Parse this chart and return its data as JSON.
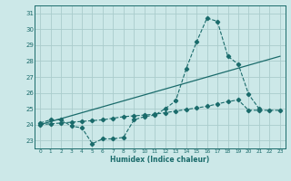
{
  "xlabel": "Humidex (Indice chaleur)",
  "bg_color": "#cce8e8",
  "grid_color": "#aacccc",
  "line_color": "#1a6b6b",
  "xlim": [
    -0.5,
    23.5
  ],
  "ylim": [
    22.5,
    31.5
  ],
  "yticks": [
    23,
    24,
    25,
    26,
    27,
    28,
    29,
    30,
    31
  ],
  "xticks": [
    0,
    1,
    2,
    3,
    4,
    5,
    6,
    7,
    8,
    9,
    10,
    11,
    12,
    13,
    14,
    15,
    16,
    17,
    18,
    19,
    20,
    21,
    22,
    23
  ],
  "series1_x": [
    0,
    1,
    2,
    3,
    4,
    5,
    6,
    7,
    8,
    9,
    10,
    11,
    12,
    13,
    14,
    15,
    16,
    17,
    18,
    19,
    20,
    21
  ],
  "series1_y": [
    24.1,
    24.3,
    24.3,
    23.9,
    23.8,
    22.8,
    23.1,
    23.1,
    23.2,
    24.3,
    24.5,
    24.6,
    25.0,
    25.5,
    27.5,
    29.2,
    30.7,
    30.5,
    28.3,
    27.8,
    25.9,
    25.0
  ],
  "series2_x": [
    0,
    1,
    2,
    3,
    4,
    5,
    6,
    7,
    8,
    9,
    10,
    11,
    12,
    13,
    14,
    15,
    16,
    17,
    18,
    19,
    20,
    21,
    22,
    23
  ],
  "series2_y": [
    24.0,
    24.05,
    24.1,
    24.15,
    24.2,
    24.25,
    24.3,
    24.4,
    24.5,
    24.55,
    24.6,
    24.65,
    24.75,
    24.85,
    24.95,
    25.05,
    25.15,
    25.3,
    25.45,
    25.55,
    24.9,
    24.9,
    24.9,
    24.9
  ],
  "series3_x": [
    0,
    23
  ],
  "series3_y": [
    24.0,
    28.3
  ]
}
